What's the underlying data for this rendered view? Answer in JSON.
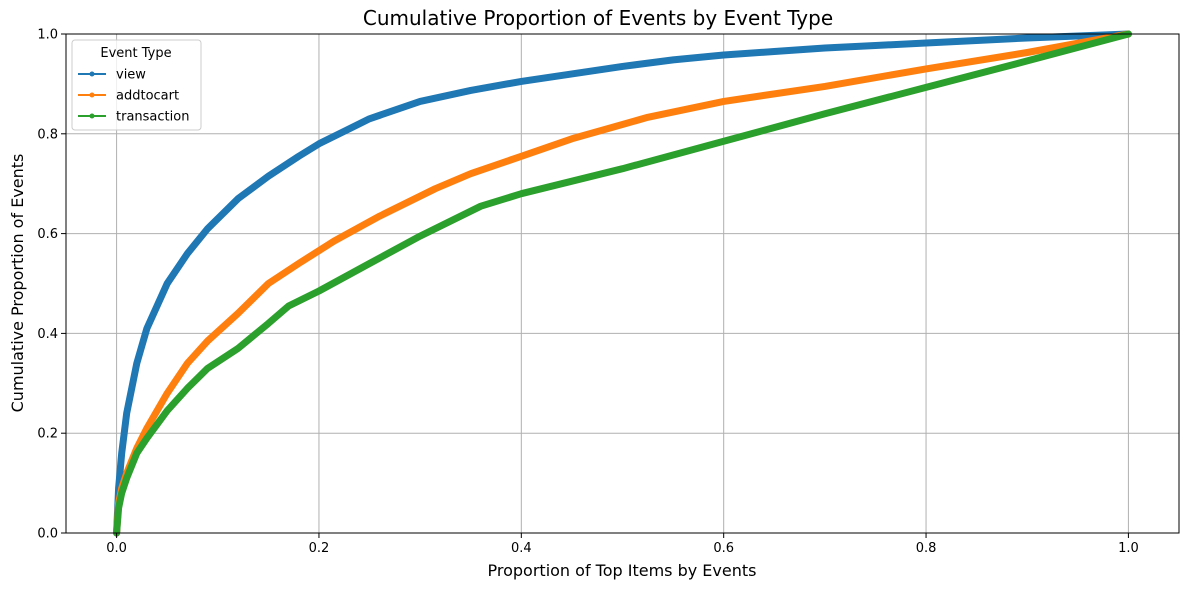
{
  "chart_data": {
    "type": "line",
    "title": "Cumulative Proportion of Events by Event Type",
    "xlabel": "Proportion of Top Items by Events",
    "ylabel": "Cumulative Proportion of Events",
    "xlim": [
      -0.05,
      1.05
    ],
    "ylim": [
      0.0,
      1.0
    ],
    "xticks": [
      0.0,
      0.2,
      0.4,
      0.6,
      0.8,
      1.0
    ],
    "xtick_labels": [
      "0.0",
      "0.2",
      "0.4",
      "0.6",
      "0.8",
      "1.0"
    ],
    "yticks": [
      0.0,
      0.2,
      0.4,
      0.6,
      0.8,
      1.0
    ],
    "ytick_labels": [
      "0.0",
      "0.2",
      "0.4",
      "0.6",
      "0.8",
      "1.0"
    ],
    "grid": true,
    "legend": {
      "title": "Event Type",
      "placement": "upper-left"
    },
    "series": [
      {
        "name": "view",
        "color": "#1f77b4",
        "x": [
          0.0,
          0.002,
          0.005,
          0.01,
          0.02,
          0.03,
          0.05,
          0.07,
          0.09,
          0.12,
          0.15,
          0.18,
          0.2,
          0.25,
          0.3,
          0.35,
          0.4,
          0.45,
          0.5,
          0.55,
          0.6,
          0.65,
          0.7,
          0.75,
          0.8,
          0.85,
          0.9,
          0.95,
          1.0
        ],
        "y": [
          0.0,
          0.09,
          0.16,
          0.24,
          0.34,
          0.41,
          0.5,
          0.56,
          0.61,
          0.67,
          0.715,
          0.755,
          0.78,
          0.83,
          0.865,
          0.887,
          0.905,
          0.92,
          0.935,
          0.948,
          0.958,
          0.965,
          0.972,
          0.977,
          0.982,
          0.987,
          0.992,
          0.996,
          1.0
        ]
      },
      {
        "name": "addtocart",
        "color": "#ff7f0e",
        "x": [
          0.0,
          0.002,
          0.005,
          0.01,
          0.02,
          0.03,
          0.05,
          0.07,
          0.09,
          0.12,
          0.15,
          0.18,
          0.215,
          0.26,
          0.315,
          0.35,
          0.4,
          0.45,
          0.525,
          0.6,
          0.7,
          0.8,
          0.9,
          1.0
        ],
        "y": [
          0.0,
          0.06,
          0.09,
          0.12,
          0.17,
          0.21,
          0.28,
          0.34,
          0.385,
          0.44,
          0.5,
          0.54,
          0.585,
          0.635,
          0.69,
          0.72,
          0.755,
          0.79,
          0.833,
          0.865,
          0.895,
          0.93,
          0.963,
          1.0
        ]
      },
      {
        "name": "transaction",
        "color": "#2ca02c",
        "x": [
          0.0,
          0.002,
          0.005,
          0.01,
          0.02,
          0.03,
          0.05,
          0.07,
          0.09,
          0.12,
          0.15,
          0.17,
          0.2,
          0.25,
          0.3,
          0.36,
          0.4,
          0.5,
          0.6,
          0.7,
          0.8,
          0.9,
          1.0
        ],
        "y": [
          0.0,
          0.05,
          0.08,
          0.11,
          0.16,
          0.19,
          0.245,
          0.29,
          0.33,
          0.37,
          0.42,
          0.455,
          0.485,
          0.54,
          0.595,
          0.655,
          0.68,
          0.73,
          0.785,
          0.84,
          0.893,
          0.946,
          1.0
        ]
      }
    ]
  }
}
